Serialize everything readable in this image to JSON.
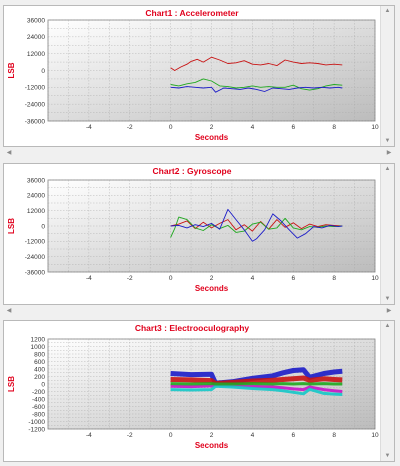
{
  "colors": {
    "title": "#e0001c",
    "red": "#c81414",
    "green": "#1fa81f",
    "blue": "#1c1cc8",
    "magenta": "#c814c8",
    "cyan": "#14c8c8"
  },
  "icons": {
    "scroll_up": "scroll-up-arrow-icon",
    "scroll_down": "scroll-down-arrow-icon",
    "scroll_left": "scroll-left-arrow-icon",
    "scroll_right": "scroll-right-arrow-icon"
  },
  "charts": [
    {
      "title": "Chart1 : Accelerometer",
      "xlabel": "Seconds",
      "ylabel": "LSB"
    },
    {
      "title": "Chart2 : Gyroscope",
      "xlabel": "Seconds",
      "ylabel": "LSB"
    },
    {
      "title": "Chart3 : Electrooculography",
      "xlabel": "Seconds",
      "ylabel": "LSB"
    }
  ],
  "chart_data": [
    {
      "type": "line",
      "title": "Chart1 : Accelerometer",
      "xlabel": "Seconds",
      "ylabel": "LSB",
      "xlim": [
        -6,
        10
      ],
      "ylim": [
        -36000,
        36000
      ],
      "xticks": [
        "-4",
        "-2",
        "0",
        "2",
        "4",
        "6",
        "8",
        "10"
      ],
      "yticks": [
        "36000",
        "24000",
        "12000",
        "0",
        "-12000",
        "-24000",
        "-36000"
      ],
      "grid": true,
      "series": [
        {
          "color": "#c81414",
          "x": [
            0,
            0.2,
            0.5,
            0.8,
            1.0,
            1.3,
            1.6,
            2.0,
            2.4,
            2.8,
            3.2,
            3.6,
            4.0,
            4.4,
            4.8,
            5.2,
            5.6,
            6.0,
            6.4,
            6.8,
            7.2,
            7.6,
            8.0,
            8.4
          ],
          "y": [
            2000,
            0,
            2500,
            4500,
            6500,
            8000,
            6000,
            9500,
            7500,
            5000,
            5500,
            7000,
            4500,
            4000,
            5000,
            3500,
            7500,
            6000,
            5000,
            5500,
            5000,
            4000,
            4500,
            4000
          ]
        },
        {
          "color": "#1fa81f",
          "x": [
            0,
            0.4,
            0.8,
            1.2,
            1.6,
            2.0,
            2.4,
            2.8,
            3.2,
            3.6,
            4.0,
            4.4,
            4.8,
            5.2,
            5.6,
            6.0,
            6.4,
            6.8,
            7.2,
            7.6,
            8.0,
            8.4
          ],
          "y": [
            -10000,
            -11000,
            -9500,
            -8500,
            -6000,
            -7500,
            -11000,
            -11500,
            -12500,
            -12000,
            -11000,
            -12000,
            -11500,
            -12000,
            -12000,
            -10500,
            -13000,
            -14000,
            -13000,
            -11000,
            -10000,
            -10500
          ]
        },
        {
          "color": "#1c1cc8",
          "x": [
            0,
            0.4,
            0.8,
            1.2,
            1.6,
            2.0,
            2.2,
            2.6,
            3.0,
            3.4,
            3.8,
            4.2,
            4.6,
            5.0,
            5.4,
            5.8,
            6.2,
            6.6,
            7.0,
            7.4,
            7.8,
            8.2,
            8.4
          ],
          "y": [
            -12000,
            -12500,
            -11500,
            -12000,
            -12500,
            -12000,
            -15500,
            -12500,
            -13000,
            -13500,
            -12500,
            -13500,
            -15000,
            -12500,
            -13000,
            -13500,
            -12500,
            -12000,
            -12500,
            -12000,
            -12500,
            -12000,
            -12500
          ]
        }
      ]
    },
    {
      "type": "line",
      "title": "Chart2 : Gyroscope",
      "xlabel": "Seconds",
      "ylabel": "LSB",
      "xlim": [
        -6,
        10
      ],
      "ylim": [
        -36000,
        36000
      ],
      "xticks": [
        "-4",
        "-2",
        "0",
        "2",
        "4",
        "6",
        "8",
        "10"
      ],
      "yticks": [
        "36000",
        "24000",
        "12000",
        "0",
        "-12000",
        "-24000",
        "-36000"
      ],
      "grid": true,
      "series": [
        {
          "color": "#c81414",
          "x": [
            0,
            0.4,
            0.8,
            1.2,
            1.6,
            2.0,
            2.4,
            2.8,
            3.2,
            3.6,
            4.0,
            4.4,
            4.8,
            5.2,
            5.6,
            6.0,
            6.4,
            6.8,
            7.2,
            7.6,
            8.0,
            8.4
          ],
          "y": [
            0,
            1500,
            4000,
            -2000,
            3000,
            -1500,
            2000,
            5000,
            -3000,
            1000,
            -4000,
            3500,
            -2500,
            5000,
            -1000,
            2500,
            -2000,
            1500,
            -500,
            1000,
            500,
            0
          ]
        },
        {
          "color": "#1fa81f",
          "x": [
            0,
            0.2,
            0.4,
            0.8,
            1.2,
            1.6,
            2.0,
            2.4,
            2.8,
            3.2,
            3.6,
            4.0,
            4.4,
            4.8,
            5.2,
            5.6,
            6.0,
            6.4,
            6.8,
            7.2,
            7.6,
            8.0,
            8.4
          ],
          "y": [
            -9000,
            -2000,
            7000,
            5000,
            -1500,
            -3500,
            1000,
            -2000,
            500,
            -5000,
            -4000,
            1500,
            3000,
            -2500,
            -1500,
            6000,
            -1500,
            -3000,
            -500,
            -1000,
            0,
            -500,
            0
          ]
        },
        {
          "color": "#1c1cc8",
          "x": [
            0,
            0.4,
            0.8,
            1.2,
            1.6,
            2.0,
            2.4,
            2.8,
            3.2,
            3.6,
            4.0,
            4.2,
            4.6,
            5.0,
            5.4,
            5.8,
            6.2,
            6.6,
            7.0,
            7.4,
            7.8,
            8.2,
            8.4
          ],
          "y": [
            0,
            500,
            -1500,
            1000,
            -500,
            2000,
            -2500,
            13000,
            5000,
            -3000,
            -12000,
            -10000,
            -3000,
            9500,
            4000,
            -3000,
            -9500,
            -6000,
            -500,
            -1500,
            500,
            -500,
            0
          ]
        }
      ]
    },
    {
      "type": "line",
      "title": "Chart3 : Electrooculography",
      "xlabel": "Seconds",
      "ylabel": "LSB",
      "xlim": [
        -6,
        10
      ],
      "ylim": [
        -1200,
        1200
      ],
      "xticks": [
        "-4",
        "-2",
        "0",
        "2",
        "4",
        "6",
        "8",
        "10"
      ],
      "yticks": [
        "1200",
        "1000",
        "800",
        "600",
        "400",
        "200",
        "0",
        "-200",
        "-400",
        "-600",
        "-800",
        "-1000",
        "-1200"
      ],
      "grid": true,
      "series": [
        {
          "color": "#1c1cc8",
          "x": [
            0,
            1,
            2,
            2.2,
            3,
            4,
            5,
            5.5,
            6,
            6.5,
            6.8,
            7.5,
            8,
            8.4
          ],
          "y": [
            280,
            250,
            260,
            20,
            60,
            150,
            220,
            300,
            360,
            380,
            180,
            280,
            320,
            340
          ]
        },
        {
          "color": "#c81414",
          "x": [
            0,
            1,
            2,
            2.2,
            3,
            4,
            5,
            5.5,
            6,
            6.5,
            6.8,
            7.5,
            8,
            8.4
          ],
          "y": [
            120,
            110,
            90,
            10,
            40,
            80,
            100,
            120,
            140,
            160,
            100,
            140,
            120,
            110
          ]
        },
        {
          "color": "#c814c8",
          "x": [
            0,
            1,
            2,
            2.2,
            3,
            4,
            5,
            5.5,
            6,
            6.5,
            6.8,
            7.5,
            8,
            8.4
          ],
          "y": [
            -60,
            -70,
            -50,
            -20,
            -40,
            -60,
            -80,
            -100,
            -130,
            -150,
            -80,
            -150,
            -180,
            -200
          ]
        },
        {
          "color": "#14c8c8",
          "x": [
            0,
            1,
            2,
            2.2,
            3,
            4,
            5,
            5.5,
            6,
            6.5,
            6.8,
            7.5,
            8,
            8.4
          ],
          "y": [
            -150,
            -160,
            -150,
            -60,
            -80,
            -120,
            -150,
            -180,
            -220,
            -260,
            -140,
            -250,
            -270,
            -280
          ]
        },
        {
          "color": "#1fa81f",
          "x": [
            0,
            1,
            2,
            2.2,
            3,
            4,
            5,
            5.5,
            6,
            6.5,
            6.8,
            7.5,
            8,
            8.4
          ],
          "y": [
            10,
            0,
            10,
            0,
            0,
            10,
            0,
            10,
            0,
            10,
            0,
            10,
            0,
            0
          ]
        }
      ]
    }
  ]
}
